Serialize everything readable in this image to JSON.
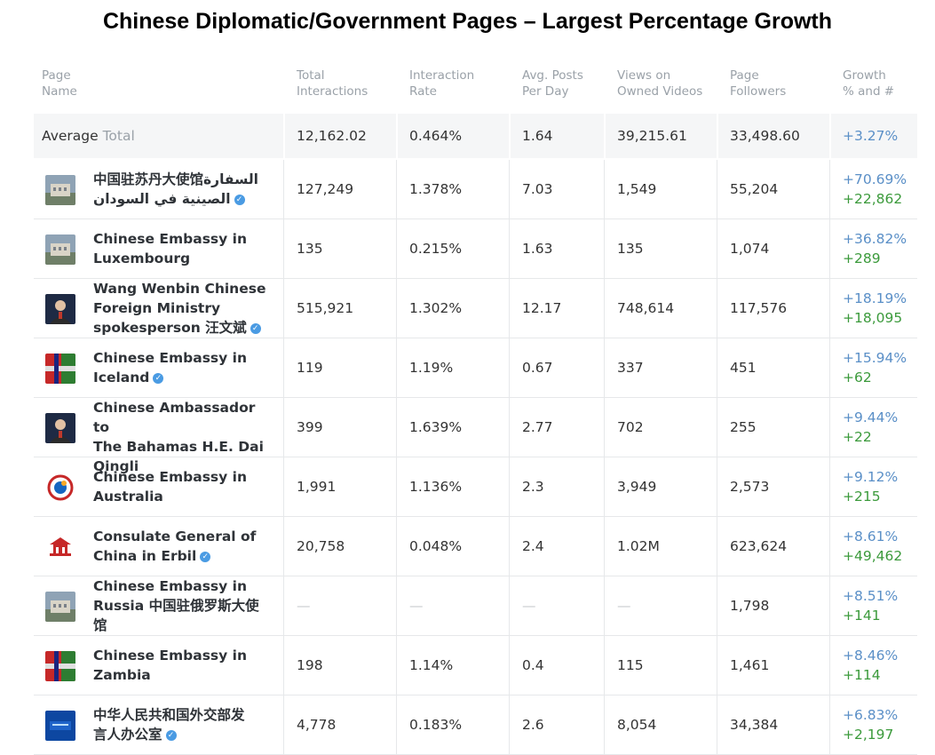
{
  "title": "Chinese Diplomatic/Government Pages – Largest Percentage Growth",
  "columns": {
    "name": [
      "Page",
      "Name"
    ],
    "interactions": [
      "Total",
      "Interactions"
    ],
    "rate": [
      "Interaction",
      "Rate"
    ],
    "posts": [
      "Avg. Posts",
      "Per Day"
    ],
    "views": [
      "Views on",
      "Owned Videos"
    ],
    "followers": [
      "Page",
      "Followers"
    ],
    "growth": [
      "Growth",
      "% and #"
    ]
  },
  "average": {
    "label": "Average",
    "label_muted": "Total",
    "interactions": "12,162.02",
    "rate": "0.464%",
    "posts": "1.64",
    "views": "39,215.61",
    "followers": "33,498.60",
    "growth": "+3.27%"
  },
  "rows": [
    {
      "name_lines": [
        "中国驻苏丹大使馆السفارة",
        "الصينية في السودان"
      ],
      "verified": true,
      "thumb": "building-photo",
      "interactions": "127,249",
      "rate": "1.378%",
      "posts": "7.03",
      "views": "1,549",
      "followers": "55,204",
      "growth_pct": "+70.69%",
      "growth_abs": "+22,862"
    },
    {
      "name_lines": [
        "Chinese Embassy in",
        "Luxembourg"
      ],
      "verified": false,
      "thumb": "building-photo",
      "interactions": "135",
      "rate": "0.215%",
      "posts": "1.63",
      "views": "135",
      "followers": "1,074",
      "growth_pct": "+36.82%",
      "growth_abs": "+289"
    },
    {
      "name_lines": [
        "Wang Wenbin Chinese",
        "Foreign Ministry",
        "spokesperson 汪文斌"
      ],
      "verified": true,
      "thumb": "person-photo",
      "interactions": "515,921",
      "rate": "1.302%",
      "posts": "12.17",
      "views": "748,614",
      "followers": "117,576",
      "growth_pct": "+18.19%",
      "growth_abs": "+18,095"
    },
    {
      "name_lines": [
        "Chinese Embassy in",
        "Iceland"
      ],
      "verified": true,
      "thumb": "flag-photo",
      "interactions": "119",
      "rate": "1.19%",
      "posts": "0.67",
      "views": "337",
      "followers": "451",
      "growth_pct": "+15.94%",
      "growth_abs": "+62"
    },
    {
      "name_lines": [
        "Chinese Ambassador to",
        "The Bahamas H.E. Dai",
        "Qingli"
      ],
      "verified": false,
      "thumb": "person-photo",
      "interactions": "399",
      "rate": "1.639%",
      "posts": "2.77",
      "views": "702",
      "followers": "255",
      "growth_pct": "+9.44%",
      "growth_abs": "+22"
    },
    {
      "name_lines": [
        "Chinese Embassy in",
        "Australia"
      ],
      "verified": false,
      "thumb": "emblem-logo",
      "interactions": "1,991",
      "rate": "1.136%",
      "posts": "2.3",
      "views": "3,949",
      "followers": "2,573",
      "growth_pct": "+9.12%",
      "growth_abs": "+215"
    },
    {
      "name_lines": [
        "Consulate General of",
        "China in Erbil"
      ],
      "verified": true,
      "thumb": "pavilion-logo",
      "interactions": "20,758",
      "rate": "0.048%",
      "posts": "2.4",
      "views": "1.02M",
      "followers": "623,624",
      "growth_pct": "+8.61%",
      "growth_abs": "+49,462"
    },
    {
      "name_lines": [
        "Chinese Embassy in",
        "Russia 中国驻俄罗斯大使",
        "馆"
      ],
      "verified": false,
      "thumb": "building-photo",
      "interactions": "—",
      "rate": "—",
      "posts": "—",
      "views": "—",
      "followers": "1,798",
      "growth_pct": "+8.51%",
      "growth_abs": "+141"
    },
    {
      "name_lines": [
        "Chinese Embassy in",
        "Zambia"
      ],
      "verified": false,
      "thumb": "flag-photo",
      "interactions": "198",
      "rate": "1.14%",
      "posts": "0.4",
      "views": "115",
      "followers": "1,461",
      "growth_pct": "+8.46%",
      "growth_abs": "+114"
    },
    {
      "name_lines": [
        "中华人民共和国外交部发",
        "言人办公室"
      ],
      "verified": true,
      "thumb": "blue-logo",
      "interactions": "4,778",
      "rate": "0.183%",
      "posts": "2.6",
      "views": "8,054",
      "followers": "34,384",
      "growth_pct": "+6.83%",
      "growth_abs": "+2,197"
    }
  ]
}
